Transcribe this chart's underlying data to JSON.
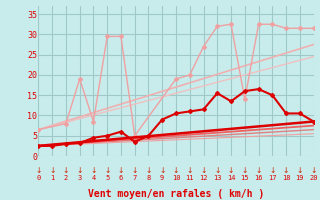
{
  "background_color": "#c8ecec",
  "grid_color": "#a0c8c8",
  "line_color_dark": "#e00000",
  "line_color_mid": "#f06060",
  "line_color_light": "#f0a0a0",
  "xlabel": "Vent moyen/en rafales ( km/h )",
  "xlabel_fontsize": 7,
  "ytick_labels": [
    "0",
    "5",
    "10",
    "15",
    "20",
    "25",
    "30",
    "35"
  ],
  "ylim": [
    0,
    37
  ],
  "xlim": [
    0,
    20
  ],
  "series": [
    {
      "x": [
        0,
        1,
        2,
        3,
        4,
        5,
        6,
        7,
        8,
        9,
        10,
        11,
        12,
        13,
        14,
        15,
        16,
        17,
        18,
        19,
        20
      ],
      "y": [
        2.5,
        2.5,
        3.0,
        3.2,
        4.5,
        5.0,
        6.0,
        3.5,
        5.0,
        9.0,
        10.5,
        11.0,
        11.5,
        15.5,
        13.5,
        16.0,
        16.5,
        15.0,
        10.5,
        10.5,
        8.5
      ],
      "color": "#dd0000",
      "lw": 1.5,
      "marker": "D",
      "ms": 2.0,
      "zorder": 5
    },
    {
      "x": [
        0,
        2,
        3,
        4,
        5,
        6,
        7,
        10,
        11,
        12,
        13,
        14,
        15,
        16,
        17,
        18,
        19,
        20
      ],
      "y": [
        6.5,
        8.0,
        19.0,
        8.5,
        29.5,
        29.5,
        5.0,
        19.0,
        20.0,
        27.0,
        32.0,
        32.5,
        14.0,
        32.5,
        32.5,
        31.5,
        31.5,
        31.5
      ],
      "color": "#f0a0a0",
      "lw": 1.0,
      "marker": "D",
      "ms": 2.0,
      "zorder": 3
    },
    {
      "x": [
        0,
        20
      ],
      "y": [
        6.5,
        27.5
      ],
      "color": "#f0b0b0",
      "lw": 1.2,
      "marker": null,
      "ms": 0,
      "zorder": 2
    },
    {
      "x": [
        0,
        20
      ],
      "y": [
        6.5,
        24.5
      ],
      "color": "#f0c0c0",
      "lw": 1.0,
      "marker": null,
      "ms": 0,
      "zorder": 2
    },
    {
      "x": [
        0,
        20
      ],
      "y": [
        2.5,
        8.5
      ],
      "color": "#dd0000",
      "lw": 1.8,
      "marker": null,
      "ms": 0,
      "zorder": 4
    },
    {
      "x": [
        0,
        20
      ],
      "y": [
        2.5,
        7.5
      ],
      "color": "#f06060",
      "lw": 1.3,
      "marker": null,
      "ms": 0,
      "zorder": 3
    },
    {
      "x": [
        0,
        20
      ],
      "y": [
        2.5,
        6.5
      ],
      "color": "#e08080",
      "lw": 1.0,
      "marker": null,
      "ms": 0,
      "zorder": 2
    },
    {
      "x": [
        0,
        20
      ],
      "y": [
        2.5,
        5.5
      ],
      "color": "#f0a0a0",
      "lw": 0.8,
      "marker": null,
      "ms": 0,
      "zorder": 2
    }
  ],
  "arrow_color": "#cc2200",
  "tick_positions": [
    0,
    1,
    2,
    3,
    4,
    5,
    6,
    7,
    8,
    9,
    10,
    11,
    12,
    13,
    14,
    15,
    16,
    17,
    18,
    19,
    20
  ]
}
